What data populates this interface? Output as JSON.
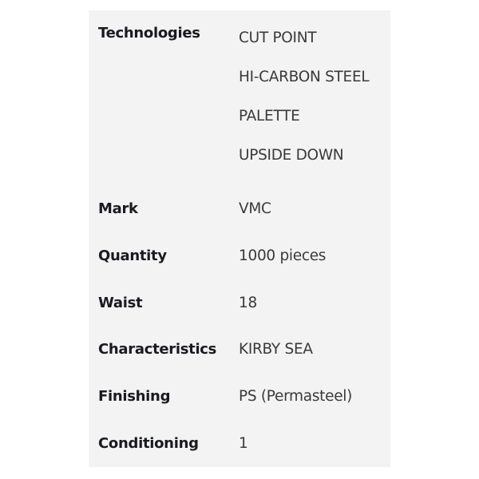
{
  "specs": {
    "technologies": {
      "label": "Technologies",
      "values": [
        "CUT POINT",
        "HI-CARBON STEEL",
        "PALETTE",
        "UPSIDE DOWN"
      ]
    },
    "mark": {
      "label": "Mark",
      "value": "VMC"
    },
    "quantity": {
      "label": "Quantity",
      "value": "1000 pieces"
    },
    "waist": {
      "label": "Waist",
      "value": "18"
    },
    "characteristics": {
      "label": "Characteristics",
      "value": "KIRBY SEA"
    },
    "finishing": {
      "label": "Finishing",
      "value": "PS (Permasteel)"
    },
    "conditioning": {
      "label": "Conditioning",
      "value": "1"
    }
  }
}
